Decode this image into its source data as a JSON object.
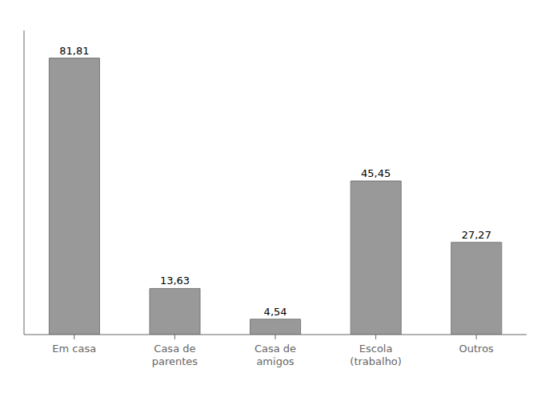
{
  "chart_data": {
    "type": "bar",
    "categories": [
      "Em casa",
      "Casa de\nparentes",
      "Casa de\namigos",
      "Escola\n(trabalho)",
      "Outros"
    ],
    "values": [
      81.81,
      13.63,
      4.54,
      45.45,
      27.27
    ],
    "value_labels": [
      "81,81",
      "13,63",
      "4,54",
      "45,45",
      "27,27"
    ],
    "color": "#999999",
    "ylim": [
      0,
      90
    ],
    "grid": false,
    "data_labels": true,
    "tick_labels": "x"
  }
}
